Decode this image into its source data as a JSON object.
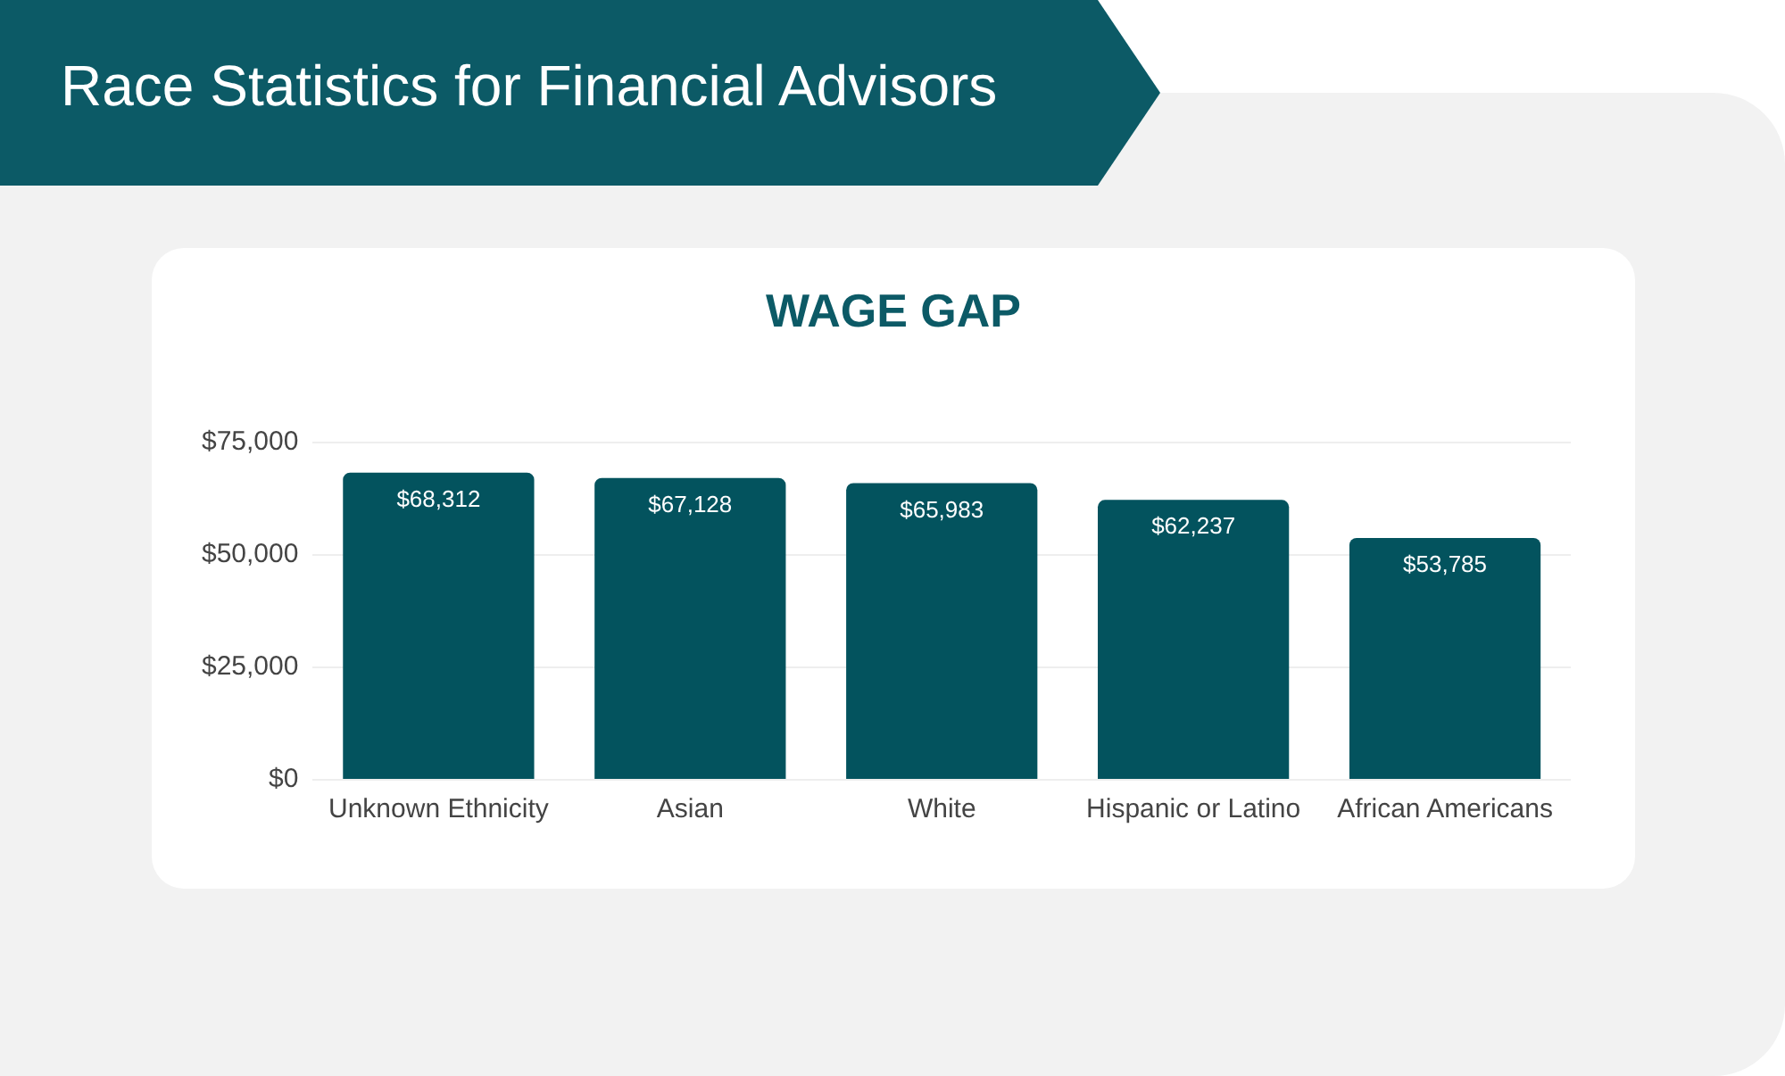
{
  "chart_data": {
    "type": "bar",
    "title": "Race Statistics for Financial Advisors",
    "subtitle": "WAGE GAP",
    "categories": [
      "Unknown Ethnicity",
      "Asian",
      "White",
      "Hispanic or Latino",
      "African Americans"
    ],
    "values": [
      68312,
      67128,
      65983,
      62237,
      53785
    ],
    "color": "#03535e",
    "ylim": [
      0,
      75000
    ],
    "yticks": [
      {
        "value": 0,
        "label": "$0"
      },
      {
        "value": 25000,
        "label": "$25,000"
      },
      {
        "value": 50000,
        "label": "$50,000"
      },
      {
        "value": 75000,
        "label": "$75,000"
      }
    ],
    "grid": "y",
    "value_labels": [
      "$68,312",
      "$67,128",
      "$65,983",
      "$62,237",
      "$53,785"
    ]
  }
}
